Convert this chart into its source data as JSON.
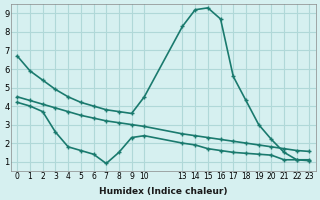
{
  "background_color": "#d6f0f0",
  "grid_color": "#b0d8d8",
  "line_color": "#1a7a6e",
  "line_color2": "#1a7a6e",
  "xlabel": "Humidex (Indice chaleur)",
  "ylabel": "",
  "xlim": [
    -0.5,
    23.5
  ],
  "ylim": [
    0.5,
    9.5
  ],
  "xticks": [
    0,
    1,
    2,
    3,
    4,
    5,
    6,
    7,
    8,
    9,
    10,
    13,
    14,
    15,
    16,
    17,
    18,
    19,
    20,
    21,
    22,
    23
  ],
  "yticks": [
    1,
    2,
    3,
    4,
    5,
    6,
    7,
    8,
    9
  ],
  "line1_x": [
    0,
    1,
    2,
    3,
    4,
    5,
    6,
    7,
    8,
    9,
    10,
    13,
    14,
    15,
    16,
    17,
    18,
    19,
    20,
    21,
    22,
    23
  ],
  "line1_y": [
    6.7,
    5.9,
    5.4,
    4.9,
    4.5,
    4.2,
    4.0,
    3.8,
    3.7,
    3.6,
    4.5,
    8.3,
    9.2,
    9.3,
    8.7,
    5.6,
    4.3,
    3.0,
    2.2,
    1.5,
    1.1,
    1.1
  ],
  "line2_x": [
    0,
    1,
    2,
    3,
    4,
    5,
    6,
    7,
    8,
    9,
    10,
    13,
    14,
    15,
    16,
    17,
    18,
    19,
    20,
    21,
    22,
    23
  ],
  "line2_y": [
    4.5,
    4.3,
    4.1,
    3.9,
    3.7,
    3.5,
    3.35,
    3.2,
    3.1,
    3.0,
    2.9,
    2.5,
    2.4,
    2.3,
    2.2,
    2.1,
    2.0,
    1.9,
    1.8,
    1.7,
    1.6,
    1.55
  ],
  "line3_x": [
    0,
    1,
    2,
    3,
    4,
    5,
    6,
    7,
    8,
    9,
    10,
    13,
    14,
    15,
    16,
    17,
    18,
    19,
    20,
    21,
    22,
    23
  ],
  "line3_y": [
    4.2,
    4.0,
    3.7,
    2.6,
    1.8,
    1.6,
    1.4,
    0.9,
    1.5,
    2.3,
    2.4,
    2.0,
    1.9,
    1.7,
    1.6,
    1.5,
    1.45,
    1.4,
    1.35,
    1.1,
    1.1,
    1.05
  ]
}
